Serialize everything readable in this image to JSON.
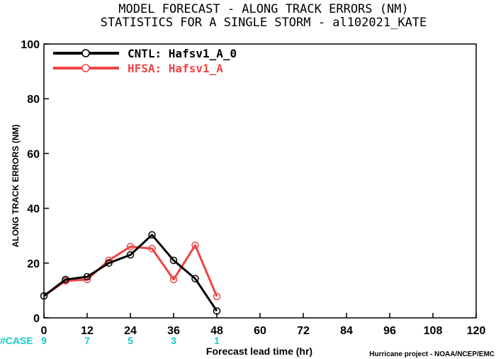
{
  "chart_data": {
    "type": "line",
    "title": "MODEL FORECAST - ALONG TRACK ERRORS (NM)",
    "subtitle": "STATISTICS FOR A SINGLE STORM - al102021_KATE",
    "xlabel": "Forecast lead time (hr)",
    "ylabel": "ALONG TRACK ERRORS (NM)",
    "xlim": [
      0,
      120
    ],
    "ylim": [
      0,
      100
    ],
    "xticks": [
      "0",
      "12",
      "24",
      "36",
      "48",
      "60",
      "72",
      "84",
      "96",
      "108",
      "120"
    ],
    "yticks": [
      "0",
      "20",
      "40",
      "60",
      "80",
      "100"
    ],
    "grid": false,
    "legend_position": "top-left",
    "case_label": "#CASE",
    "case_color": "#18c9c9",
    "cases": [
      {
        "x": 0,
        "count": "9"
      },
      {
        "x": 12,
        "count": "7"
      },
      {
        "x": 24,
        "count": "5"
      },
      {
        "x": 36,
        "count": "3"
      },
      {
        "x": 48,
        "count": "1"
      }
    ],
    "credit": "Hurricane project - NOAA/NCEP/EMC",
    "series": [
      {
        "name": "CNTL: Hafsv1_A_0",
        "color": "#000000",
        "x": [
          0,
          6,
          12,
          18,
          24,
          30,
          36,
          42,
          48
        ],
        "values": [
          8.0,
          14.0,
          15.0,
          20.0,
          23.0,
          30.3,
          21.0,
          14.3,
          2.5
        ]
      },
      {
        "name": "HFSA: Hafsv1_A",
        "color": "#ee4444",
        "x": [
          0,
          6,
          12,
          18,
          24,
          30,
          36,
          42,
          48
        ],
        "values": [
          8.0,
          13.5,
          14.0,
          21.0,
          26.0,
          25.3,
          14.0,
          26.5,
          7.8
        ]
      }
    ]
  }
}
